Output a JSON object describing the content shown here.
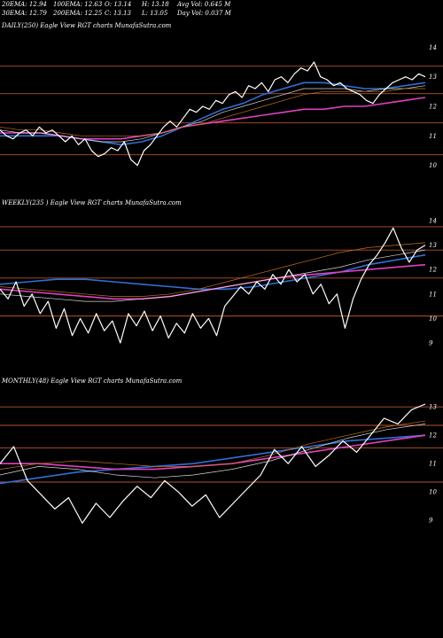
{
  "header": {
    "ema20": "20EMA: 12.94",
    "ema100": "100EMA: 12.63",
    "open": "O: 13.14",
    "high": "H: 13.18",
    "avgvol": "Avg Vol: 0.645 M",
    "ema30": "30EMA: 12.79",
    "ema200": "200EMA: 12.25",
    "close": "C: 13.13",
    "low": "L: 13.05",
    "dayvol": "Day Vol: 0.037 M"
  },
  "colors": {
    "price": "#ffffff",
    "hline": "#b4532a",
    "ema_blue": "#2f6fd6",
    "ema_magenta": "#e040c0",
    "ema_white_thin": "#d8d8d8",
    "ema_orange_thin": "#c07020"
  },
  "chart_data": [
    {
      "type": "line",
      "label": "DAILY(250) Eagle  View  RGT charts MunafaSutra.com",
      "ylim": [
        9.6,
        14.4
      ],
      "yticks": [
        "14",
        "13",
        "12",
        "11",
        "10"
      ],
      "hlines": [
        13.36,
        12.43,
        11.44,
        10.36
      ],
      "price": [
        11.2,
        11.0,
        10.9,
        11.1,
        11.2,
        11.0,
        11.3,
        11.1,
        11.2,
        11.0,
        10.8,
        11.0,
        10.7,
        10.9,
        10.5,
        10.3,
        10.4,
        10.6,
        10.5,
        10.8,
        10.2,
        10.0,
        10.5,
        10.7,
        11.0,
        11.3,
        11.5,
        11.3,
        11.6,
        11.9,
        11.8,
        12.0,
        11.9,
        12.2,
        12.1,
        12.4,
        12.5,
        12.3,
        12.7,
        12.6,
        12.8,
        12.5,
        12.9,
        13.0,
        12.8,
        13.1,
        13.3,
        13.2,
        13.5,
        13.0,
        12.9,
        12.7,
        12.8,
        12.6,
        12.5,
        12.4,
        12.2,
        12.1,
        12.4,
        12.6,
        12.8,
        12.9,
        13.0,
        12.9,
        13.1,
        13.0
      ],
      "series": [
        {
          "color_key": "ema_blue",
          "values": [
            11.0,
            11.0,
            11.0,
            11.0,
            10.9,
            10.8,
            10.7,
            10.8,
            11.0,
            11.3,
            11.6,
            11.9,
            12.1,
            12.4,
            12.6,
            12.8,
            12.8,
            12.7,
            12.6,
            12.6,
            12.7,
            12.8
          ]
        },
        {
          "color_key": "ema_magenta",
          "values": [
            11.1,
            11.1,
            11.1,
            11.0,
            10.9,
            10.9,
            10.9,
            11.0,
            11.1,
            11.3,
            11.4,
            11.5,
            11.6,
            11.7,
            11.8,
            11.9,
            11.9,
            12.0,
            12.0,
            12.1,
            12.2,
            12.3
          ]
        },
        {
          "color_key": "ema_white_thin",
          "values": [
            11.2,
            11.1,
            11.1,
            11.0,
            10.9,
            10.8,
            10.8,
            10.9,
            11.1,
            11.3,
            11.5,
            11.8,
            12.0,
            12.2,
            12.4,
            12.6,
            12.6,
            12.6,
            12.5,
            12.6,
            12.6,
            12.7
          ]
        },
        {
          "color_key": "ema_orange_thin",
          "values": [
            11.3,
            11.2,
            11.2,
            11.1,
            11.0,
            11.0,
            11.0,
            11.0,
            11.1,
            11.3,
            11.4,
            11.6,
            11.8,
            12.0,
            12.2,
            12.4,
            12.5,
            12.5,
            12.5,
            12.5,
            12.6,
            12.6
          ]
        }
      ]
    },
    {
      "type": "line",
      "label": "WEEKLY(235                     ) Eagle  View  RGT charts MunafaSutra.com",
      "ylim": [
        8.6,
        14.4
      ],
      "yticks": [
        "14",
        "13",
        "12",
        "11",
        "10",
        "9"
      ],
      "hlines": [
        13.75,
        12.8,
        11.65,
        10.1
      ],
      "price": [
        11.2,
        10.8,
        11.5,
        10.5,
        11.0,
        10.2,
        10.7,
        9.6,
        10.4,
        9.3,
        10.0,
        9.4,
        10.2,
        9.5,
        9.9,
        9.0,
        10.2,
        9.7,
        10.3,
        9.5,
        10.1,
        9.2,
        9.8,
        9.4,
        10.2,
        9.6,
        10.0,
        9.3,
        10.5,
        10.9,
        11.3,
        11.0,
        11.5,
        11.2,
        11.8,
        11.4,
        12.0,
        11.5,
        11.8,
        11.0,
        11.4,
        10.6,
        11.0,
        9.6,
        10.8,
        11.6,
        12.2,
        12.6,
        13.1,
        13.7,
        12.9,
        12.3,
        12.8,
        13.0
      ],
      "series": [
        {
          "color_key": "ema_blue",
          "values": [
            11.4,
            11.5,
            11.6,
            11.6,
            11.5,
            11.4,
            11.3,
            11.2,
            11.2,
            11.3,
            11.5,
            11.7,
            11.9,
            12.2,
            12.4,
            12.6
          ]
        },
        {
          "color_key": "ema_magenta",
          "values": [
            11.2,
            11.1,
            11.0,
            10.9,
            10.8,
            10.8,
            10.9,
            11.1,
            11.3,
            11.5,
            11.7,
            11.8,
            11.9,
            12.0,
            12.1,
            12.2
          ]
        },
        {
          "color_key": "ema_white_thin",
          "values": [
            11.0,
            10.9,
            10.8,
            10.7,
            10.7,
            10.8,
            10.9,
            11.1,
            11.3,
            11.5,
            11.7,
            11.9,
            12.1,
            12.4,
            12.6,
            12.8
          ]
        },
        {
          "color_key": "ema_orange_thin",
          "values": [
            11.3,
            11.2,
            11.1,
            11.0,
            10.9,
            10.9,
            11.0,
            11.2,
            11.5,
            11.8,
            12.1,
            12.4,
            12.7,
            12.9,
            13.0,
            13.1
          ]
        }
      ]
    },
    {
      "type": "line",
      "label": "MONTHLY(48) Eagle  View  RGT charts MunafaSutra.com",
      "ylim": [
        8.6,
        13.6
      ],
      "yticks": [
        "13",
        "12",
        "11",
        "10",
        "9"
      ],
      "hlines": [
        13.0,
        12.35,
        11.55,
        10.35
      ],
      "price": [
        11.0,
        11.6,
        10.4,
        9.9,
        9.4,
        9.8,
        8.9,
        9.6,
        9.1,
        9.7,
        10.2,
        9.8,
        10.4,
        10.0,
        9.5,
        9.9,
        9.1,
        9.6,
        10.1,
        10.6,
        11.5,
        11.0,
        11.6,
        10.9,
        11.3,
        11.8,
        11.4,
        12.0,
        12.6,
        12.4,
        12.9,
        13.1
      ],
      "series": [
        {
          "color_key": "ema_blue",
          "values": [
            10.3,
            10.5,
            10.7,
            10.8,
            10.9,
            11.0,
            11.2,
            11.4,
            11.6,
            11.8,
            11.9,
            12.0
          ]
        },
        {
          "color_key": "ema_magenta",
          "values": [
            11.0,
            11.0,
            10.9,
            10.8,
            10.8,
            10.9,
            11.0,
            11.2,
            11.4,
            11.6,
            11.8,
            12.0
          ]
        },
        {
          "color_key": "ema_white_thin",
          "values": [
            10.6,
            10.9,
            10.8,
            10.6,
            10.5,
            10.6,
            10.8,
            11.1,
            11.5,
            11.9,
            12.2,
            12.4
          ]
        },
        {
          "color_key": "ema_orange_thin",
          "values": [
            10.8,
            11.0,
            11.1,
            11.0,
            10.9,
            10.9,
            11.0,
            11.3,
            11.7,
            12.0,
            12.3,
            12.5
          ]
        }
      ]
    }
  ]
}
